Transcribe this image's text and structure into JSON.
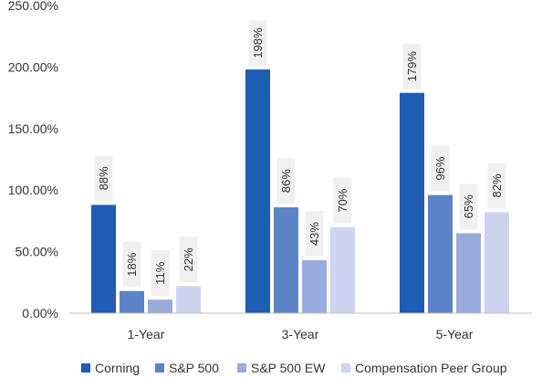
{
  "chart_data": {
    "type": "bar",
    "categories": [
      "1-Year",
      "3-Year",
      "5-Year"
    ],
    "series": [
      {
        "name": "Corning",
        "values": [
          88,
          198,
          179
        ],
        "labels": [
          "88%",
          "198%",
          "179%"
        ],
        "color": "#1f5cb4"
      },
      {
        "name": "S&P 500",
        "values": [
          18,
          86,
          96
        ],
        "labels": [
          "18%",
          "86%",
          "96%"
        ],
        "color": "#5b83c6"
      },
      {
        "name": "S&P 500 EW",
        "values": [
          11,
          43,
          65
        ],
        "labels": [
          "11%",
          "43%",
          "65%"
        ],
        "color": "#98acdb"
      },
      {
        "name": "Compensation Peer Group",
        "values": [
          22,
          70,
          82
        ],
        "labels": [
          "22%",
          "70%",
          "82%"
        ],
        "color": "#ccd4ef"
      }
    ],
    "yticks": [
      0,
      50,
      100,
      150,
      200,
      250
    ],
    "ytick_labels": [
      "0.00%",
      "50.00%",
      "100.00%",
      "150.00%",
      "200.00%",
      "250.00%"
    ],
    "ylim": [
      0,
      250
    ],
    "title": "",
    "xlabel": "",
    "ylabel": "",
    "grid": false,
    "legend_position": "bottom",
    "label_box_color": "#f0f0f0"
  }
}
